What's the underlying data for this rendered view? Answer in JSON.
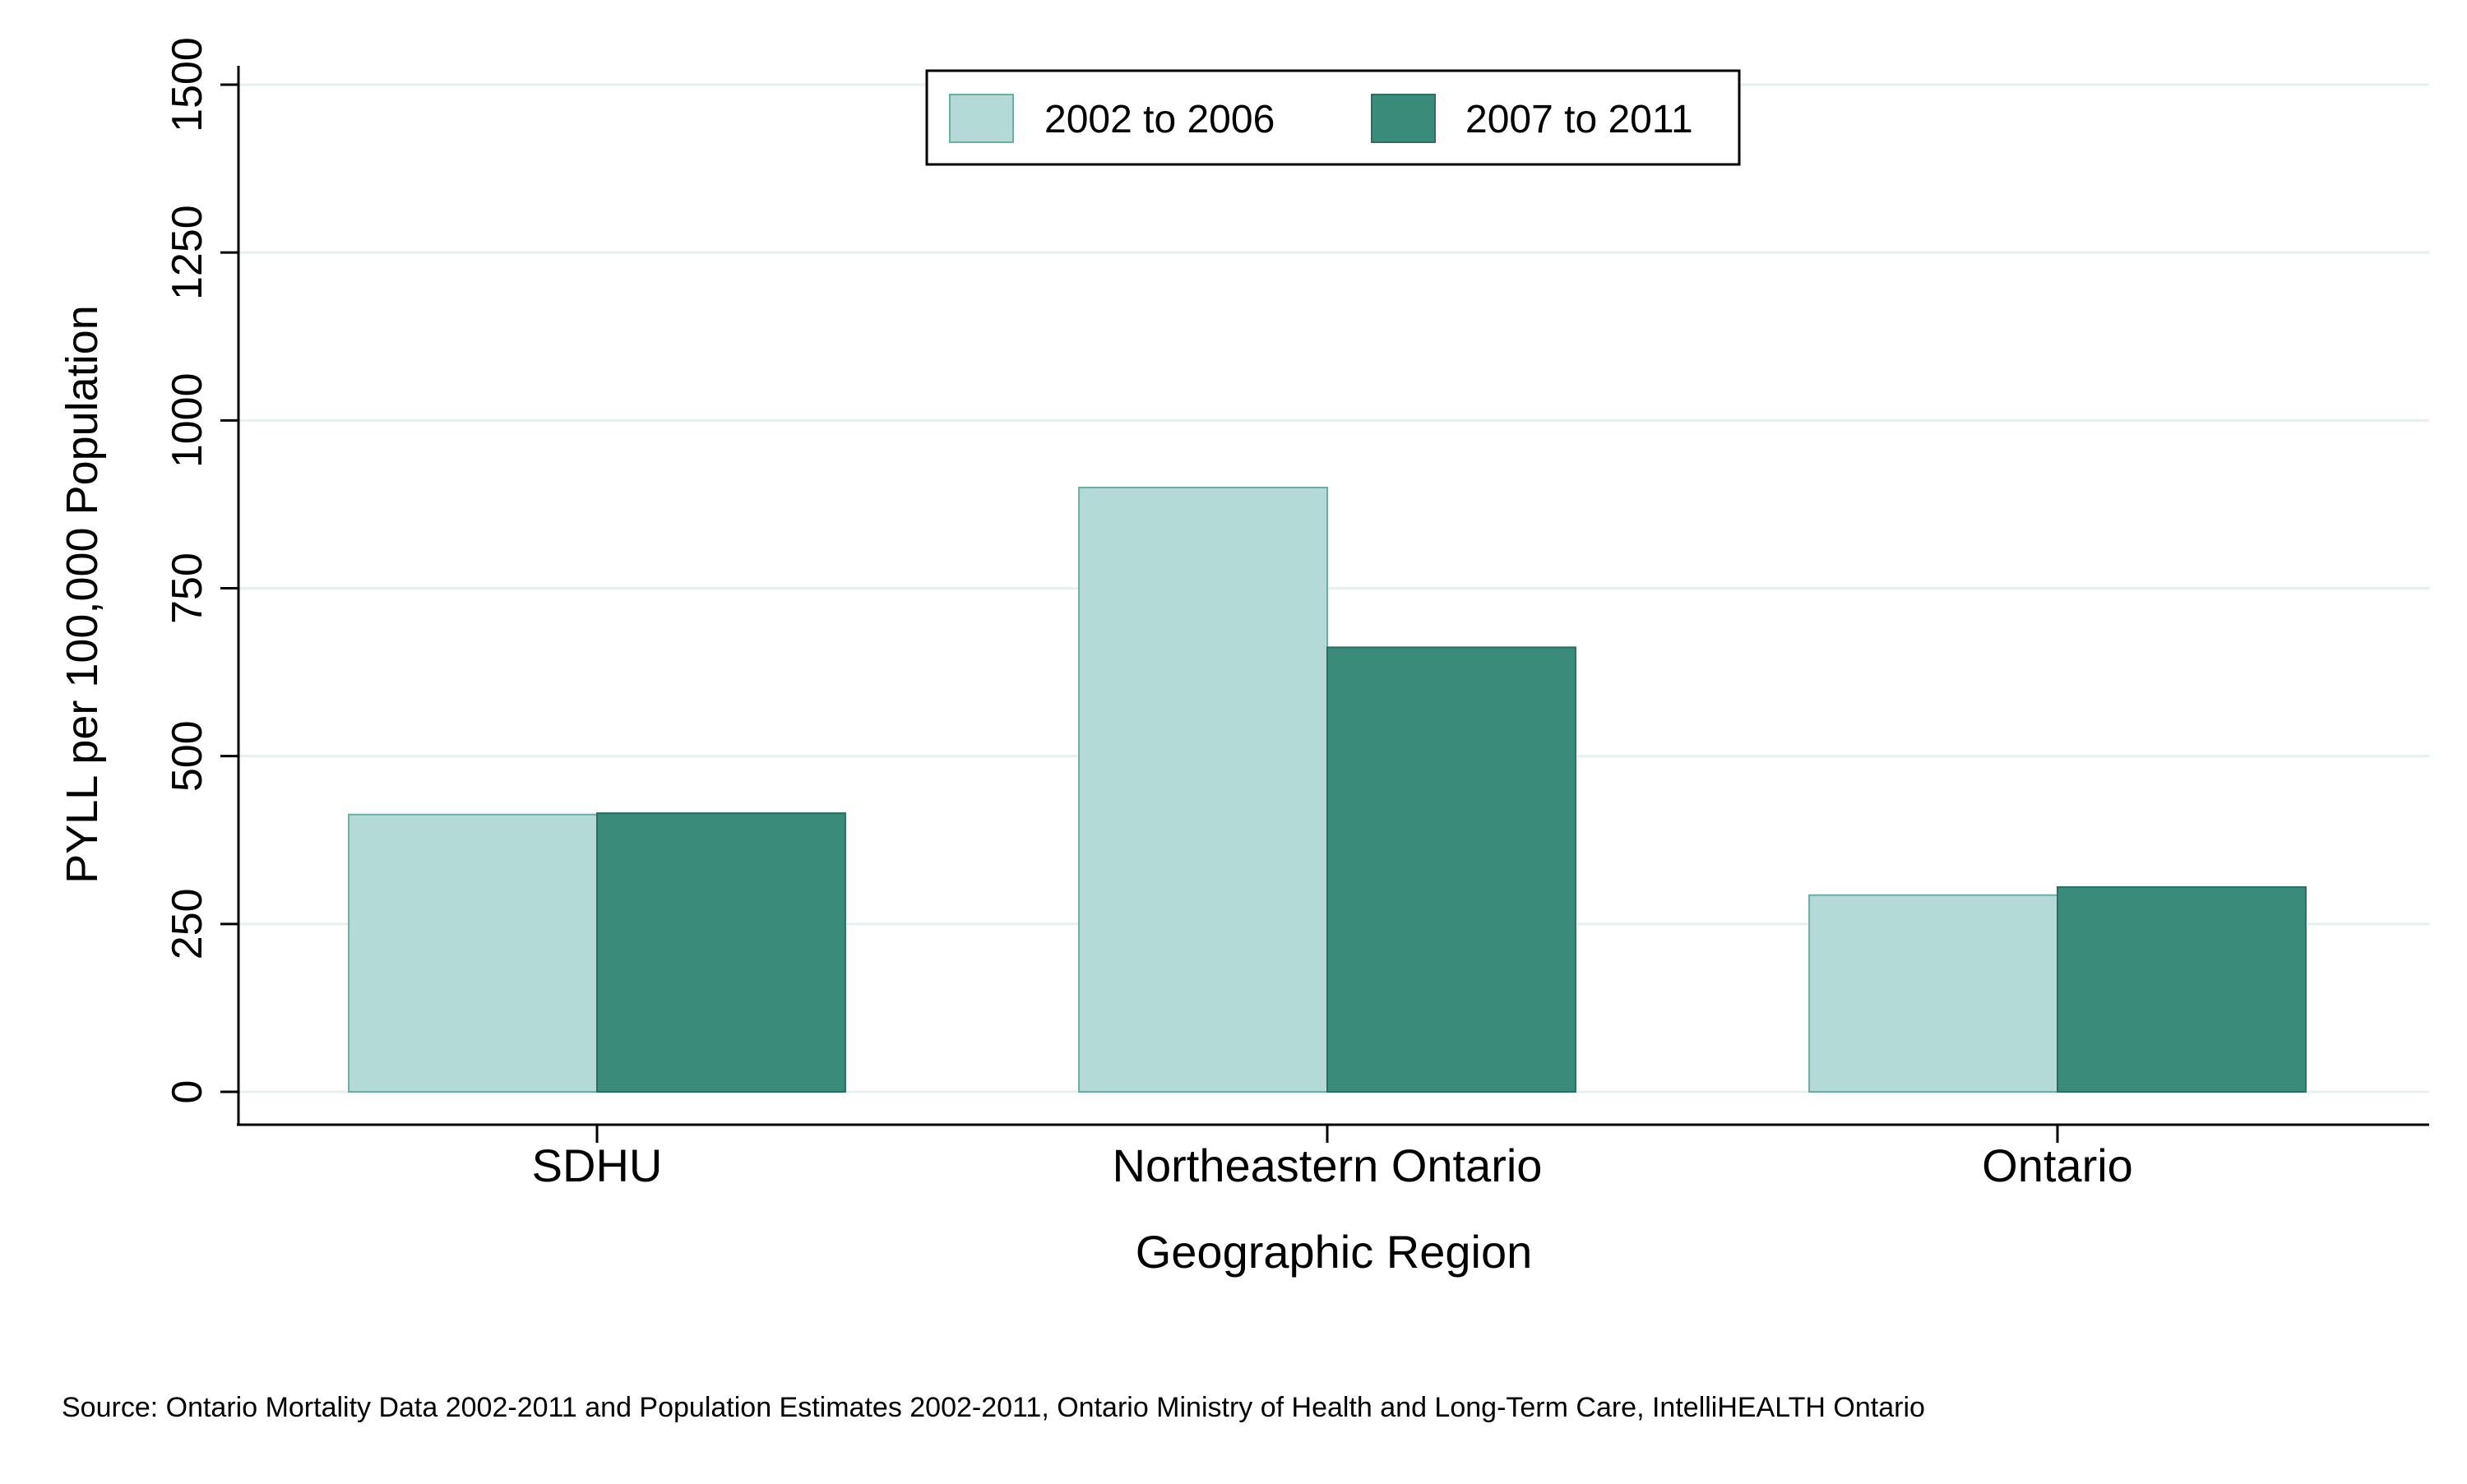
{
  "chart_data": {
    "type": "bar",
    "categories": [
      "SDHU",
      "Northeastern Ontario",
      "Ontario"
    ],
    "series": [
      {
        "name": "2002 to 2006",
        "values": [
          413,
          900,
          293
        ]
      },
      {
        "name": "2007 to 2011",
        "values": [
          415,
          662,
          305
        ]
      }
    ],
    "title": "",
    "xlabel": "Geographic Region",
    "ylabel": "PYLL per 100,000 Population",
    "ylim": [
      0,
      1500
    ],
    "yticks": [
      "0",
      "250",
      "500",
      "750",
      "1000",
      "1250",
      "1500"
    ],
    "grid": true,
    "legend_position": "top-center",
    "colors": {
      "2002 to 2006": "#b3dad6",
      "2007 to 2011": "#3b8b7b",
      "grid": "#e6f1ef"
    },
    "source": "Source: Ontario Mortality Data 2002-2011 and Population Estimates 2002-2011, Ontario Ministry of Health and Long-Term Care, IntelliHEALTH Ontario"
  }
}
